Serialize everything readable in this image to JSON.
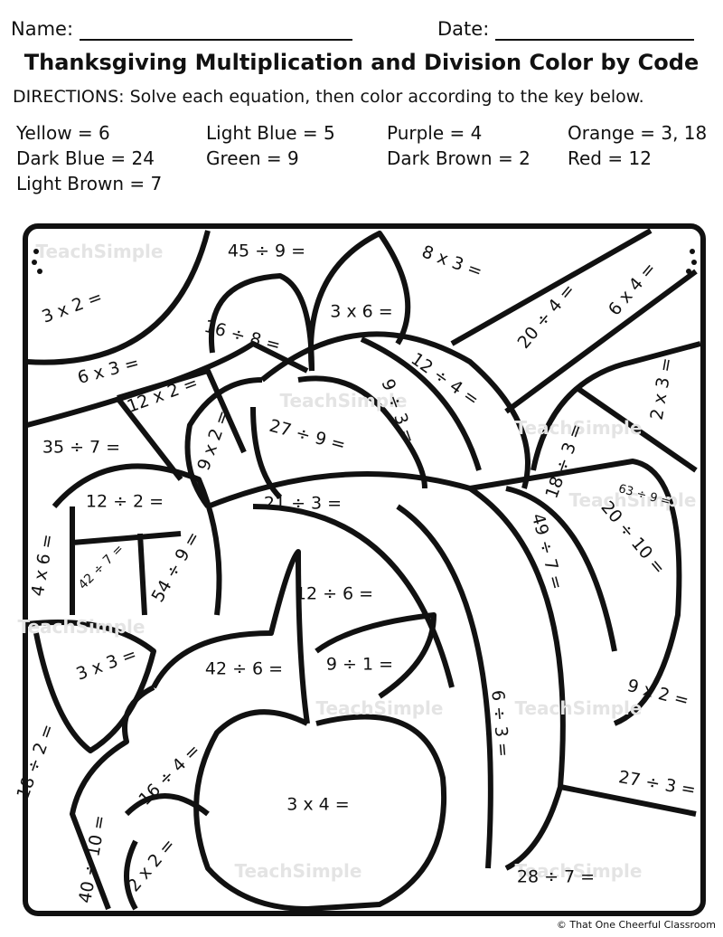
{
  "header": {
    "name_label": "Name:",
    "date_label": "Date:",
    "title": "Thanksgiving Multiplication and Division Color by Code",
    "directions": "DIRECTIONS: Solve each equation, then color according to the key below."
  },
  "key": [
    "Yellow = 6",
    "Light Blue = 5",
    "Purple = 4",
    "Orange = 3, 18",
    "Dark Blue = 24",
    "Green = 9",
    "Dark Brown = 2",
    "Red = 12",
    "Light Brown = 7"
  ],
  "equations": [
    "45 ÷ 9 =",
    "8 x 3 =",
    "3 x 2 =",
    "3 x 6 =",
    "16 ÷ 8 =",
    "20 ÷ 4 =",
    "6 x 4 =",
    "6 x 3 =",
    "12 ÷ 4 =",
    "12 x 2 =",
    "2 x 3 =",
    "9 ÷ 3 =",
    "27 ÷ 9 =",
    "9 x 2 =",
    "35 ÷ 7 =",
    "18 ÷ 3 =",
    "63 ÷ 9 =",
    "12 ÷ 2 =",
    "21 ÷ 3 =",
    "20 ÷ 10 =",
    "49 ÷ 7 =",
    "4 x 6 =",
    "42 ÷ 7 =",
    "54 ÷ 9 =",
    "12 ÷ 6 =",
    "3 x 3 =",
    "42 ÷ 6 =",
    "9 ÷ 1 =",
    "9 x 2 =",
    "6 ÷ 3 =",
    "18 ÷ 2 =",
    "16 ÷ 4 =",
    "27 ÷ 3 =",
    "3 x 4 =",
    "40 ÷ 10 =",
    "2 x 2 =",
    "28 ÷ 7 ="
  ],
  "watermark": "TeachSimple",
  "footer": "© That One Cheerful Classroom"
}
